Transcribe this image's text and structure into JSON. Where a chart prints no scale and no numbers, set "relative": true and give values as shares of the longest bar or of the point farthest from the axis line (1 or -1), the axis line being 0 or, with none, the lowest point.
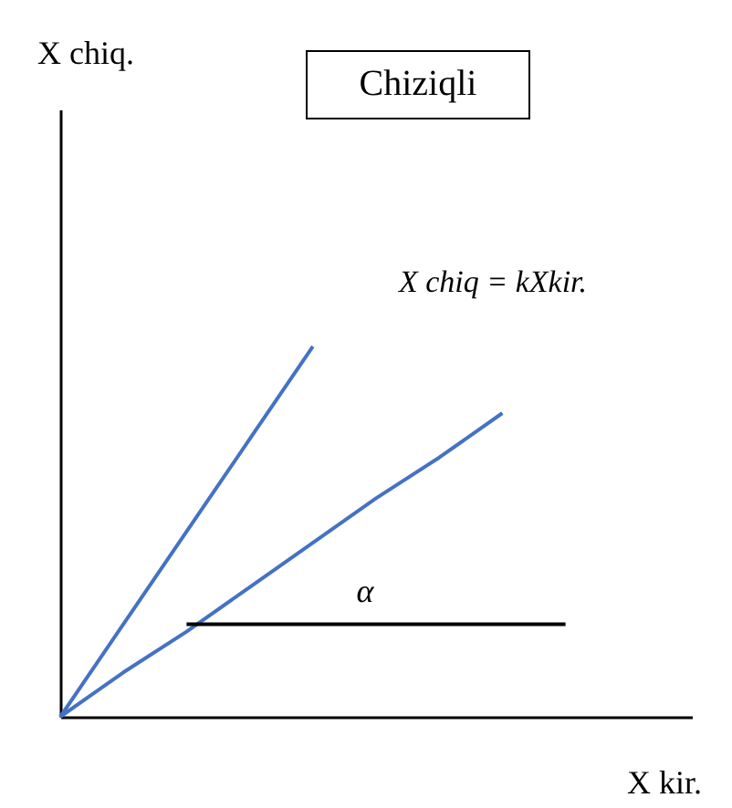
{
  "chart_data": {
    "type": "line",
    "title": "Chiziqli",
    "xlabel": "X kir.",
    "relative": true,
    "annotations": [
      "X chiq.",
      "X chiq = kXkir.",
      "α"
    ],
    "grid": false,
    "marker": "none",
    "line_style": "solid",
    "categories": [
      null,
      null,
      null,
      null,
      null,
      null,
      null,
      null,
      null,
      null,
      null
    ],
    "series": [
      {
        "color": "#4472c4",
        "values": [
          0,
          0.25,
          0.5,
          0.75,
          1,
          null,
          null,
          null,
          null,
          null,
          null
        ]
      },
      {
        "color": "#4472c4",
        "values": [
          0,
          0.12,
          0.23,
          0.35,
          0.47,
          0.59,
          0.7,
          0.82,
          null,
          null,
          null
        ]
      },
      {
        "color": "#000000",
        "values": [
          null,
          null,
          0.25,
          0.25,
          0.25,
          0.25,
          0.25,
          0.25,
          0.25,
          null,
          null
        ]
      }
    ]
  }
}
